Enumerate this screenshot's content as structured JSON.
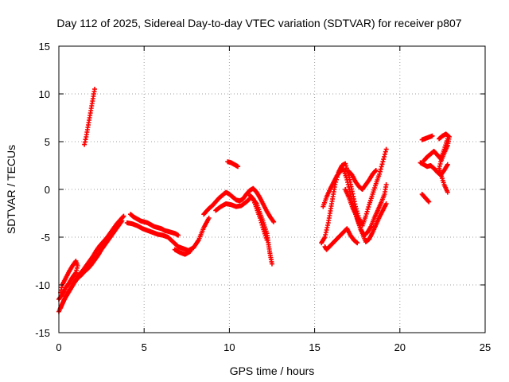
{
  "chart_data": {
    "type": "scatter",
    "title": "Day 112 of 2025, Sidereal Day-to-day VTEC variation (SDTVAR) for receiver p807",
    "xlabel": "GPS time / hours",
    "ylabel": "SDTVAR / TECUs",
    "xlim": [
      0,
      25
    ],
    "ylim": [
      -15,
      15
    ],
    "xticks": [
      0,
      5,
      10,
      15,
      20,
      25
    ],
    "yticks": [
      -15,
      -10,
      -5,
      0,
      5,
      10,
      15
    ],
    "grid": true,
    "marker": "plus",
    "color": "#ff0000",
    "series": [
      {
        "segments": [
          [
            [
              0.0,
              -12.8
            ],
            [
              0.2,
              -12.0
            ],
            [
              0.4,
              -11.2
            ],
            [
              0.6,
              -10.6
            ],
            [
              0.8,
              -10.0
            ],
            [
              1.0,
              -9.4
            ],
            [
              1.2,
              -8.9
            ],
            [
              1.4,
              -8.5
            ],
            [
              1.6,
              -8.0
            ],
            [
              1.8,
              -7.5
            ],
            [
              2.0,
              -7.0
            ],
            [
              2.2,
              -6.4
            ],
            [
              2.4,
              -5.9
            ],
            [
              2.6,
              -5.5
            ],
            [
              2.8,
              -5.1
            ],
            [
              3.0,
              -4.6
            ],
            [
              3.2,
              -4.1
            ],
            [
              3.4,
              -3.6
            ],
            [
              3.6,
              -3.2
            ],
            [
              3.8,
              -2.8
            ]
          ],
          [
            [
              0.0,
              -11.5
            ],
            [
              0.2,
              -11.0
            ],
            [
              0.4,
              -10.3
            ],
            [
              0.6,
              -9.8
            ],
            [
              0.8,
              -9.2
            ],
            [
              1.0,
              -8.7
            ],
            [
              1.1,
              -8.0
            ],
            [
              1.0,
              -7.5
            ],
            [
              0.8,
              -8.0
            ],
            [
              0.6,
              -8.6
            ],
            [
              0.4,
              -9.3
            ],
            [
              0.2,
              -10.0
            ],
            [
              0.1,
              -10.8
            ]
          ],
          [
            [
              0.1,
              -12.4
            ],
            [
              0.3,
              -11.6
            ],
            [
              0.5,
              -11.0
            ],
            [
              0.7,
              -10.4
            ],
            [
              0.9,
              -9.8
            ],
            [
              1.1,
              -9.3
            ],
            [
              1.3,
              -9.0
            ],
            [
              1.5,
              -8.6
            ],
            [
              1.7,
              -8.3
            ],
            [
              1.9,
              -7.9
            ],
            [
              2.1,
              -7.4
            ],
            [
              2.3,
              -6.9
            ],
            [
              2.5,
              -6.3
            ],
            [
              2.7,
              -5.8
            ],
            [
              2.9,
              -5.3
            ],
            [
              3.1,
              -4.8
            ],
            [
              3.3,
              -4.3
            ],
            [
              3.5,
              -3.8
            ],
            [
              3.7,
              -3.3
            ]
          ],
          [
            [
              1.5,
              4.7
            ],
            [
              1.6,
              5.5
            ],
            [
              1.7,
              6.5
            ],
            [
              1.8,
              7.5
            ],
            [
              1.9,
              8.5
            ],
            [
              2.0,
              9.5
            ],
            [
              2.1,
              10.5
            ]
          ],
          [
            [
              4.2,
              -2.6
            ],
            [
              4.4,
              -2.9
            ],
            [
              4.6,
              -3.1
            ],
            [
              4.8,
              -3.3
            ],
            [
              5.0,
              -3.4
            ],
            [
              5.2,
              -3.5
            ],
            [
              5.4,
              -3.7
            ],
            [
              5.6,
              -3.9
            ],
            [
              5.8,
              -4.0
            ],
            [
              6.0,
              -4.1
            ],
            [
              6.2,
              -4.3
            ],
            [
              6.4,
              -4.4
            ],
            [
              6.6,
              -4.5
            ],
            [
              6.8,
              -4.6
            ],
            [
              7.0,
              -4.8
            ]
          ],
          [
            [
              4.0,
              -3.5
            ],
            [
              4.3,
              -3.6
            ],
            [
              4.6,
              -3.8
            ],
            [
              4.9,
              -4.1
            ],
            [
              5.2,
              -4.3
            ],
            [
              5.5,
              -4.5
            ],
            [
              5.8,
              -4.7
            ],
            [
              6.1,
              -4.8
            ],
            [
              6.4,
              -5.0
            ],
            [
              6.7,
              -5.5
            ],
            [
              7.0,
              -6.0
            ],
            [
              7.3,
              -6.2
            ],
            [
              7.6,
              -6.4
            ],
            [
              7.9,
              -6.1
            ],
            [
              8.2,
              -5.3
            ],
            [
              8.5,
              -4.0
            ],
            [
              8.8,
              -3.0
            ]
          ],
          [
            [
              6.8,
              -6.3
            ],
            [
              7.1,
              -6.6
            ],
            [
              7.4,
              -6.8
            ],
            [
              7.7,
              -6.5
            ]
          ],
          [
            [
              8.5,
              -2.6
            ],
            [
              8.8,
              -2.0
            ],
            [
              9.0,
              -1.7
            ],
            [
              9.2,
              -1.3
            ],
            [
              9.4,
              -0.9
            ],
            [
              9.6,
              -0.6
            ],
            [
              9.8,
              -0.3
            ],
            [
              10.0,
              -0.5
            ],
            [
              10.2,
              -0.8
            ],
            [
              10.4,
              -1.1
            ],
            [
              10.6,
              -1.2
            ],
            [
              10.8,
              -1.0
            ],
            [
              11.0,
              -0.5
            ],
            [
              11.2,
              -0.1
            ],
            [
              11.4,
              0.1
            ],
            [
              11.6,
              -0.3
            ],
            [
              11.8,
              -0.9
            ],
            [
              12.0,
              -1.6
            ],
            [
              12.2,
              -2.3
            ],
            [
              12.4,
              -2.9
            ],
            [
              12.6,
              -3.4
            ]
          ],
          [
            [
              9.2,
              -2.2
            ],
            [
              9.5,
              -1.8
            ],
            [
              9.8,
              -1.5
            ],
            [
              10.1,
              -1.6
            ],
            [
              10.4,
              -1.8
            ],
            [
              10.7,
              -1.7
            ],
            [
              11.0,
              -1.3
            ],
            [
              11.3,
              -0.8
            ],
            [
              11.6,
              -1.5
            ],
            [
              11.8,
              -2.5
            ],
            [
              12.0,
              -3.5
            ],
            [
              12.2,
              -4.6
            ],
            [
              12.3,
              -5.8
            ],
            [
              12.4,
              -6.9
            ],
            [
              12.5,
              -7.8
            ]
          ],
          [
            [
              11.2,
              -0.6
            ],
            [
              11.4,
              -1.0
            ],
            [
              11.6,
              -2.0
            ],
            [
              11.8,
              -3.0
            ],
            [
              12.0,
              -4.2
            ],
            [
              12.2,
              -5.3
            ]
          ],
          [
            [
              9.9,
              2.9
            ],
            [
              10.1,
              2.8
            ],
            [
              10.3,
              2.6
            ],
            [
              10.5,
              2.4
            ]
          ],
          [
            [
              15.4,
              -5.6
            ],
            [
              15.6,
              -5.0
            ],
            [
              15.8,
              -3.5
            ],
            [
              16.0,
              -1.5
            ],
            [
              16.2,
              0.5
            ],
            [
              16.4,
              1.8
            ],
            [
              16.6,
              2.5
            ],
            [
              16.8,
              2.7
            ],
            [
              17.0,
              1.5
            ],
            [
              17.2,
              -0.2
            ],
            [
              17.4,
              -1.8
            ],
            [
              17.6,
              -3.0
            ],
            [
              17.8,
              -3.8
            ],
            [
              18.0,
              -2.8
            ],
            [
              18.2,
              -1.6
            ],
            [
              18.4,
              -0.5
            ],
            [
              18.6,
              0.6
            ],
            [
              18.8,
              1.6
            ],
            [
              19.0,
              2.9
            ],
            [
              19.2,
              4.2
            ]
          ],
          [
            [
              15.5,
              -1.8
            ],
            [
              15.7,
              -0.8
            ],
            [
              15.9,
              0.0
            ],
            [
              16.1,
              0.7
            ],
            [
              16.3,
              1.4
            ],
            [
              16.5,
              1.9
            ],
            [
              16.7,
              2.1
            ],
            [
              16.9,
              1.0
            ],
            [
              17.1,
              -0.5
            ],
            [
              17.3,
              -1.9
            ],
            [
              17.5,
              -3.1
            ],
            [
              17.7,
              -4.2
            ],
            [
              17.9,
              -4.8
            ],
            [
              18.1,
              -4.5
            ],
            [
              18.3,
              -3.9
            ],
            [
              18.5,
              -3.0
            ],
            [
              18.7,
              -2.2
            ],
            [
              18.9,
              -1.4
            ],
            [
              19.1,
              -0.5
            ],
            [
              19.2,
              0.5
            ]
          ],
          [
            [
              16.8,
              0.0
            ],
            [
              17.0,
              -0.8
            ],
            [
              17.2,
              -1.8
            ],
            [
              17.4,
              -2.6
            ],
            [
              17.6,
              -3.6
            ],
            [
              17.8,
              -4.6
            ],
            [
              18.0,
              -5.5
            ],
            [
              18.2,
              -5.2
            ],
            [
              18.4,
              -4.5
            ],
            [
              18.6,
              -3.7
            ],
            [
              18.8,
              -2.9
            ],
            [
              19.0,
              -2.2
            ],
            [
              19.2,
              -1.5
            ]
          ],
          [
            [
              17.0,
              1.9
            ],
            [
              17.2,
              1.5
            ],
            [
              17.4,
              0.8
            ],
            [
              17.6,
              0.3
            ],
            [
              17.8,
              0.0
            ],
            [
              18.0,
              0.5
            ],
            [
              18.2,
              1.0
            ],
            [
              18.4,
              1.6
            ],
            [
              18.6,
              2.0
            ]
          ],
          [
            [
              15.6,
              -6.0
            ],
            [
              15.7,
              -6.3
            ],
            [
              16.9,
              -4.1
            ],
            [
              17.1,
              -4.8
            ],
            [
              17.3,
              -5.3
            ],
            [
              17.5,
              -5.6
            ]
          ],
          [
            [
              21.3,
              -0.5
            ],
            [
              21.5,
              -0.9
            ],
            [
              21.7,
              -1.3
            ]
          ],
          [
            [
              21.3,
              5.2
            ],
            [
              21.6,
              5.4
            ],
            [
              21.9,
              5.6
            ]
          ],
          [
            [
              21.2,
              2.8
            ],
            [
              21.4,
              2.6
            ],
            [
              21.6,
              2.4
            ],
            [
              21.8,
              2.5
            ],
            [
              22.0,
              2.2
            ],
            [
              22.2,
              1.8
            ],
            [
              22.4,
              1.5
            ],
            [
              22.6,
              2.0
            ],
            [
              22.8,
              2.6
            ]
          ],
          [
            [
              21.4,
              3.0
            ],
            [
              21.6,
              3.4
            ],
            [
              21.8,
              3.7
            ],
            [
              22.0,
              4.0
            ],
            [
              22.2,
              3.6
            ],
            [
              22.4,
              3.2
            ],
            [
              22.6,
              4.2
            ],
            [
              22.8,
              5.3
            ]
          ],
          [
            [
              22.3,
              5.3
            ],
            [
              22.5,
              5.6
            ],
            [
              22.7,
              5.8
            ],
            [
              22.9,
              5.5
            ],
            [
              22.8,
              4.6
            ],
            [
              22.6,
              3.8
            ],
            [
              22.4,
              2.9
            ],
            [
              22.3,
              2.2
            ],
            [
              22.4,
              1.6
            ],
            [
              22.6,
              0.5
            ],
            [
              22.8,
              -0.3
            ]
          ]
        ]
      }
    ]
  }
}
